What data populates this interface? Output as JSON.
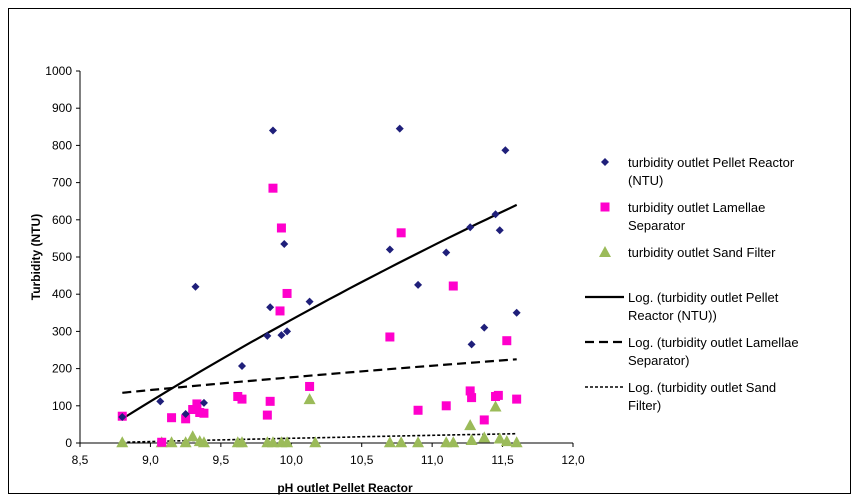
{
  "chart_data": {
    "type": "scatter",
    "xlabel": "pH outlet Pellet Reactor",
    "ylabel": "Turbidity (NTU)",
    "xlim": [
      8.5,
      12.0
    ],
    "ylim": [
      0,
      1000
    ],
    "xticks": [
      8.5,
      9.0,
      9.5,
      10.0,
      10.5,
      11.0,
      11.5,
      12.0
    ],
    "xtick_labels": [
      "8,5",
      "9,0",
      "9,5",
      "10,0",
      "10,5",
      "11,0",
      "11,5",
      "12,0"
    ],
    "yticks": [
      0,
      100,
      200,
      300,
      400,
      500,
      600,
      700,
      800,
      900,
      1000
    ],
    "ytick_labels": [
      "0",
      "100",
      "200",
      "300",
      "400",
      "500",
      "600",
      "700",
      "800",
      "900",
      "1000"
    ],
    "grid": false,
    "legend_position": "right",
    "series": [
      {
        "name": "turbidity outlet Pellet Reactor (NTU)",
        "legend_lines": [
          "turbidity outlet Pellet Reactor",
          "(NTU)"
        ],
        "marker": "diamond",
        "color": "#1f1f7a",
        "points": [
          [
            8.8,
            70
          ],
          [
            9.07,
            112
          ],
          [
            9.25,
            78
          ],
          [
            9.32,
            420
          ],
          [
            9.38,
            108
          ],
          [
            9.65,
            207
          ],
          [
            9.83,
            288
          ],
          [
            9.85,
            365
          ],
          [
            9.87,
            840
          ],
          [
            9.93,
            290
          ],
          [
            9.95,
            535
          ],
          [
            9.97,
            300
          ],
          [
            10.13,
            380
          ],
          [
            10.7,
            520
          ],
          [
            10.77,
            845
          ],
          [
            10.9,
            425
          ],
          [
            11.1,
            512
          ],
          [
            11.27,
            580
          ],
          [
            11.28,
            265
          ],
          [
            11.37,
            310
          ],
          [
            11.45,
            615
          ],
          [
            11.48,
            572
          ],
          [
            11.52,
            787
          ],
          [
            11.6,
            350
          ]
        ]
      },
      {
        "name": "turbidity outlet Lamellae Separator",
        "legend_lines": [
          "turbidity outlet Lamellae",
          "Separator"
        ],
        "marker": "square",
        "color": "#ff00cc",
        "points": [
          [
            8.8,
            72
          ],
          [
            9.08,
            2
          ],
          [
            9.15,
            68
          ],
          [
            9.25,
            65
          ],
          [
            9.3,
            90
          ],
          [
            9.33,
            105
          ],
          [
            9.35,
            82
          ],
          [
            9.38,
            80
          ],
          [
            9.62,
            125
          ],
          [
            9.65,
            118
          ],
          [
            9.83,
            75
          ],
          [
            9.85,
            112
          ],
          [
            9.87,
            685
          ],
          [
            9.92,
            355
          ],
          [
            9.93,
            578
          ],
          [
            9.97,
            402
          ],
          [
            10.13,
            152
          ],
          [
            10.7,
            285
          ],
          [
            10.78,
            565
          ],
          [
            10.9,
            88
          ],
          [
            11.1,
            100
          ],
          [
            11.15,
            422
          ],
          [
            11.27,
            140
          ],
          [
            11.28,
            122
          ],
          [
            11.37,
            62
          ],
          [
            11.45,
            125
          ],
          [
            11.47,
            128
          ],
          [
            11.53,
            275
          ],
          [
            11.6,
            118
          ]
        ]
      },
      {
        "name": "turbidity outlet Sand Filter",
        "legend_lines": [
          "turbidity outlet Sand Filter"
        ],
        "marker": "triangle",
        "color": "#9bbb59",
        "points": [
          [
            8.8,
            2
          ],
          [
            9.08,
            2
          ],
          [
            9.15,
            2
          ],
          [
            9.25,
            2
          ],
          [
            9.3,
            18
          ],
          [
            9.35,
            5
          ],
          [
            9.38,
            2
          ],
          [
            9.62,
            2
          ],
          [
            9.65,
            2
          ],
          [
            9.83,
            2
          ],
          [
            9.87,
            2
          ],
          [
            9.93,
            2
          ],
          [
            9.97,
            2
          ],
          [
            10.13,
            118
          ],
          [
            10.17,
            2
          ],
          [
            10.7,
            2
          ],
          [
            10.78,
            2
          ],
          [
            10.9,
            2
          ],
          [
            11.1,
            2
          ],
          [
            11.15,
            2
          ],
          [
            11.27,
            48
          ],
          [
            11.28,
            8
          ],
          [
            11.37,
            15
          ],
          [
            11.45,
            98
          ],
          [
            11.48,
            12
          ],
          [
            11.53,
            5
          ],
          [
            11.6,
            2
          ]
        ]
      }
    ],
    "trendlines": [
      {
        "name": "Log. (turbidity outlet Pellet Reactor (NTU))",
        "legend_lines": [
          "Log. (turbidity outlet Pellet",
          "Reactor (NTU))"
        ],
        "style": "solid",
        "x": [
          8.8,
          11.6
        ],
        "y": [
          65,
          640
        ]
      },
      {
        "name": "Log. (turbidity outlet Lamellae Separator)",
        "legend_lines": [
          "Log. (turbidity outlet Lamellae",
          "Separator)"
        ],
        "style": "dashed",
        "x": [
          8.8,
          11.6
        ],
        "y": [
          135,
          225
        ]
      },
      {
        "name": "Log. (turbidity outlet Sand Filter)",
        "legend_lines": [
          "Log. (turbidity outlet Sand",
          "Filter)"
        ],
        "style": "dotted",
        "x": [
          8.8,
          11.6
        ],
        "y": [
          2,
          25
        ]
      }
    ]
  }
}
